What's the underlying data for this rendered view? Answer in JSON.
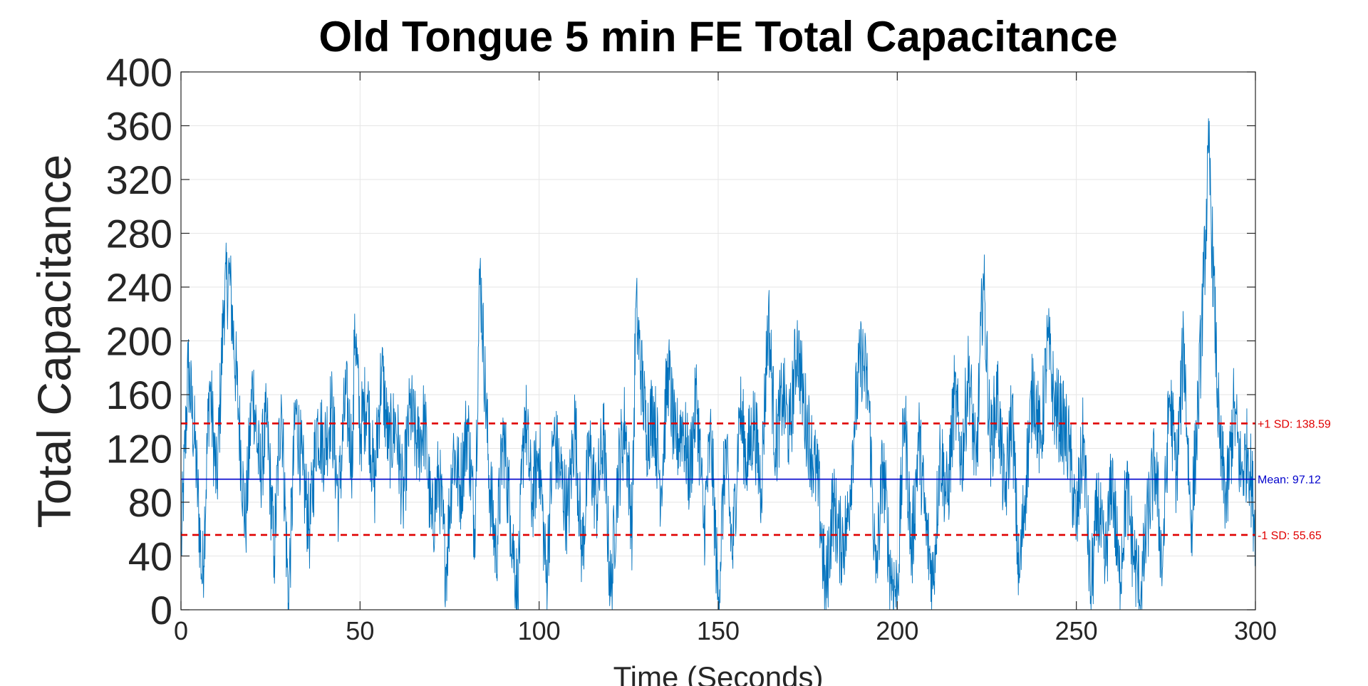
{
  "chart_data": {
    "type": "line",
    "title": "Old Tongue 5 min FE Total Capacitance",
    "xlabel": "Time (Seconds)",
    "ylabel": "Total Capacitance",
    "xlim": [
      0,
      300
    ],
    "ylim": [
      0,
      400
    ],
    "xticks": [
      0,
      50,
      100,
      150,
      200,
      250,
      300
    ],
    "xtick_labels": [
      "0",
      "50",
      "100",
      "150",
      "200",
      "250",
      "300"
    ],
    "yticks": [
      0,
      40,
      80,
      120,
      160,
      200,
      240,
      280,
      320,
      360,
      400
    ],
    "ytick_labels": [
      "0",
      "40",
      "80",
      "120",
      "160",
      "200",
      "240",
      "280",
      "320",
      "360",
      "400"
    ],
    "grid": true,
    "series": [
      {
        "color": "#0072BD",
        "x": [
          0,
          2,
          4,
          6,
          8,
          10,
          12,
          13.5,
          16,
          18,
          20,
          22,
          24,
          26,
          28,
          30,
          32,
          34,
          36,
          38,
          40,
          42,
          44,
          46,
          48,
          48.5,
          50,
          52,
          54,
          56,
          58,
          60,
          62,
          64,
          66,
          68,
          70,
          72,
          74,
          76,
          78,
          80,
          82,
          83.5,
          86,
          88,
          90,
          92,
          94,
          96,
          98,
          100,
          102,
          104,
          106,
          108,
          110,
          112,
          114,
          116,
          118,
          120,
          122,
          124,
          126,
          127,
          130,
          132,
          134,
          136,
          138,
          140,
          142,
          144,
          146,
          148,
          150,
          152,
          154,
          156,
          158,
          160,
          162,
          164,
          166,
          168,
          170,
          172,
          174,
          176,
          178,
          180,
          182,
          184,
          186,
          188,
          190,
          192,
          194,
          196,
          198,
          200,
          202,
          204,
          206,
          208,
          210,
          212,
          214,
          216,
          218,
          220,
          222,
          224,
          226,
          228,
          230,
          232,
          234,
          236,
          238,
          240,
          242,
          244,
          246,
          248,
          250,
          252,
          254,
          256,
          258,
          260,
          262,
          264,
          266,
          268,
          270,
          272,
          274,
          276,
          278,
          280,
          282,
          284,
          285.5,
          287,
          290,
          292,
          294,
          296,
          298,
          300
        ],
        "y": [
          40,
          180,
          120,
          20,
          170,
          90,
          230,
          250,
          150,
          60,
          170,
          100,
          140,
          40,
          160,
          5,
          150,
          100,
          60,
          140,
          120,
          150,
          80,
          160,
          110,
          220,
          130,
          160,
          90,
          180,
          120,
          140,
          80,
          150,
          120,
          140,
          60,
          100,
          30,
          120,
          90,
          140,
          60,
          255,
          100,
          40,
          130,
          70,
          10,
          150,
          80,
          120,
          20,
          130,
          100,
          70,
          140,
          40,
          120,
          80,
          130,
          10,
          100,
          140,
          60,
          225,
          130,
          150,
          90,
          180,
          120,
          140,
          100,
          160,
          60,
          130,
          5,
          120,
          40,
          150,
          110,
          140,
          90,
          220,
          120,
          160,
          130,
          200,
          150,
          120,
          90,
          10,
          80,
          50,
          60,
          140,
          190,
          160,
          20,
          110,
          30,
          10,
          150,
          40,
          130,
          60,
          20,
          120,
          80,
          160,
          110,
          180,
          100,
          250,
          120,
          160,
          80,
          150,
          20,
          100,
          170,
          120,
          200,
          150,
          140,
          120,
          60,
          130,
          10,
          80,
          30,
          100,
          20,
          90,
          40,
          10,
          70,
          110,
          30,
          160,
          100,
          200,
          60,
          150,
          240,
          340,
          120,
          80,
          150,
          100,
          120,
          60
        ]
      }
    ],
    "reference_lines": [
      {
        "value": 138.59,
        "label": "+1 SD: 138.59",
        "color": "#E00000",
        "style": "dashed"
      },
      {
        "value": 97.12,
        "label": "Mean: 97.12",
        "color": "#0000CC",
        "style": "solid"
      },
      {
        "value": 55.65,
        "label": "-1 SD: 55.65",
        "color": "#E00000",
        "style": "dashed"
      }
    ]
  }
}
